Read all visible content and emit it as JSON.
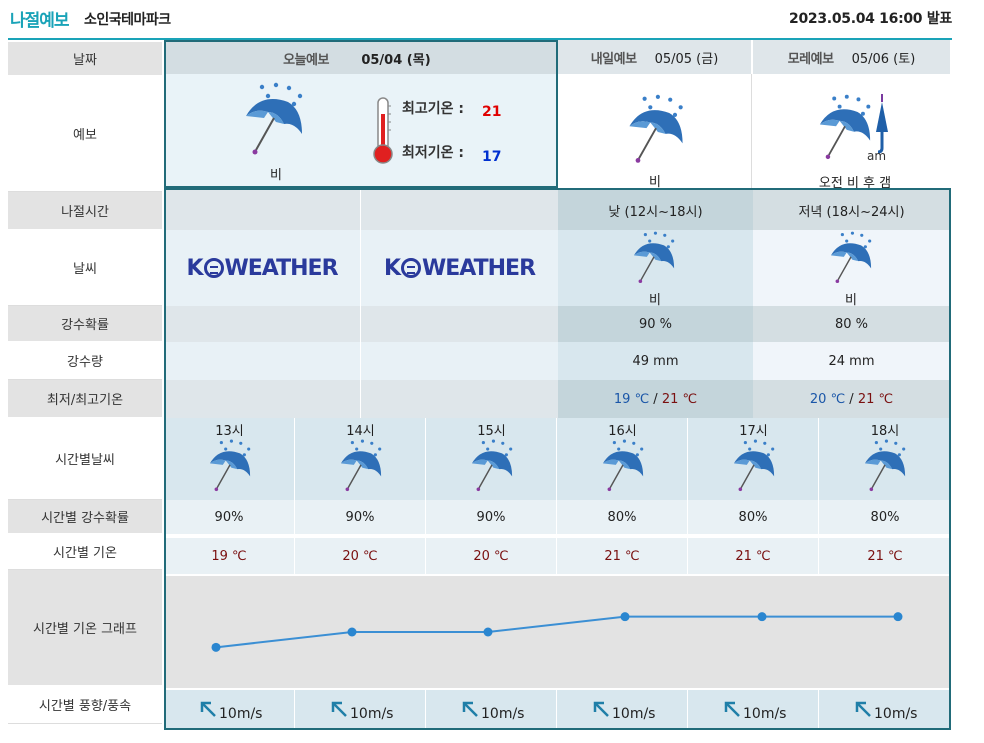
{
  "header": {
    "brand": "나절예보",
    "place": "소인국테마파크",
    "issued": "2023.05.04 16:00 발표"
  },
  "labels": [
    "날짜",
    "예보",
    "나절시간",
    "날씨",
    "강수확률",
    "강수량",
    "최저/최고기온",
    "시간별날씨",
    "시간별 강수확률",
    "시간별 기온",
    "시간별 기온 그래프",
    "시간별 풍향/풍속"
  ],
  "today": {
    "title": "오늘예보",
    "date": "05/04 (목)",
    "weather": "비",
    "max_label": "최고기온 :",
    "max_value": "21",
    "min_label": "최저기온 :",
    "min_value": "17"
  },
  "tomorrow": {
    "title": "내일예보",
    "date": "05/05 (금)",
    "weather": "비"
  },
  "dayafter": {
    "title": "모레예보",
    "date": "05/06 (토)",
    "weather": "오전 비 후 갬",
    "am_tag": "am"
  },
  "logo_text": "K WEATHER",
  "periods": [
    {
      "name": "낮 (12시~18시)",
      "weather": "비",
      "pop": "90 %",
      "rain": "49 mm",
      "tmin": "19 ℃",
      "tmax": "21 ℃"
    },
    {
      "name": "저녁 (18시~24시)",
      "weather": "비",
      "pop": "80 %",
      "rain": "24 mm",
      "tmin": "20 ℃",
      "tmax": "21 ℃"
    }
  ],
  "hourly": [
    {
      "hour": "13시",
      "pop": "90%",
      "temp": "19 ℃",
      "wind": "10m/s"
    },
    {
      "hour": "14시",
      "pop": "90%",
      "temp": "20 ℃",
      "wind": "10m/s"
    },
    {
      "hour": "15시",
      "pop": "90%",
      "temp": "20 ℃",
      "wind": "10m/s"
    },
    {
      "hour": "16시",
      "pop": "80%",
      "temp": "21 ℃",
      "wind": "10m/s"
    },
    {
      "hour": "17시",
      "pop": "80%",
      "temp": "21 ℃",
      "wind": "10m/s"
    },
    {
      "hour": "18시",
      "pop": "80%",
      "temp": "21 ℃",
      "wind": "10m/s"
    }
  ],
  "chart_data": {
    "type": "line",
    "x": [
      "13시",
      "14시",
      "15시",
      "16시",
      "17시",
      "18시"
    ],
    "values": [
      19,
      20,
      20,
      21,
      21,
      21
    ]
  },
  "icons": {
    "weather": "umbrella-rain-icon",
    "thermometer": "thermometer-icon",
    "wind": "wind-arrow-northwest-icon"
  },
  "colors": {
    "accent": "#1aa3b8",
    "line": "#3b8fd4",
    "max_temp": "#e00000",
    "min_temp": "#0030d0"
  }
}
